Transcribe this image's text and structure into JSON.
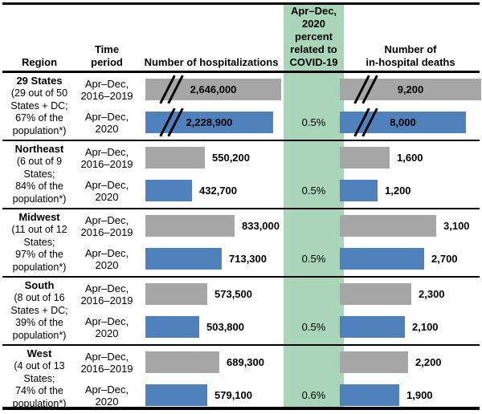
{
  "colors": {
    "bar_2016_2019": "#a6a6a6",
    "bar_2020": "#4f81bd",
    "covid_column": "#a9d6b8",
    "rule": "#000000"
  },
  "header": {
    "region": "Region",
    "time_period": "Time\nperiod",
    "hospitalizations": "Number of hospitalizations",
    "covid": "Apr–Dec,\n2020\npercent\nrelated to\nCOVID-19",
    "deaths": "Number of\nin-hospital deaths"
  },
  "sections": [
    {
      "region": "29 States",
      "note": "(29 out of 50\nStates + DC;\n67% of the\npopulation*)",
      "rows": [
        {
          "period": "Apr–Dec,\n2016–2019",
          "hosp_value": 2646000,
          "hosp_label": "2,646,000",
          "hosp_truncated": true,
          "deaths_value": 9200,
          "deaths_label": "9,200",
          "deaths_truncated": true
        },
        {
          "period": "Apr–Dec,\n2020",
          "covid_pct": "0.5%",
          "hosp_value": 2228900,
          "hosp_label": "2,228,900",
          "hosp_truncated": true,
          "deaths_value": 8000,
          "deaths_label": "8,000",
          "deaths_truncated": true
        }
      ]
    },
    {
      "region": "Northeast",
      "note": "(6 out of 9\nStates;\n84% of the\npopulation*)",
      "rows": [
        {
          "period": "Apr–Dec,\n2016–2019",
          "hosp_value": 550200,
          "hosp_label": "550,200",
          "deaths_value": 1600,
          "deaths_label": "1,600"
        },
        {
          "period": "Apr–Dec,\n2020",
          "covid_pct": "0.5%",
          "hosp_value": 432700,
          "hosp_label": "432,700",
          "deaths_value": 1200,
          "deaths_label": "1,200"
        }
      ]
    },
    {
      "region": "Midwest",
      "note": "(11 out of 12\nStates;\n97% of the\npopulation*)",
      "rows": [
        {
          "period": "Apr–Dec,\n2016–2019",
          "hosp_value": 833000,
          "hosp_label": "833,000",
          "deaths_value": 3100,
          "deaths_label": "3,100"
        },
        {
          "period": "Apr–Dec,\n2020",
          "covid_pct": "0.5%",
          "hosp_value": 713300,
          "hosp_label": "713,300",
          "deaths_value": 2700,
          "deaths_label": "2,700"
        }
      ]
    },
    {
      "region": "South",
      "note": "(8 out of 16\nStates + DC;\n39% of the\npopulation*)",
      "rows": [
        {
          "period": "Apr–Dec,\n2016–2019",
          "hosp_value": 573500,
          "hosp_label": "573,500",
          "deaths_value": 2300,
          "deaths_label": "2,300"
        },
        {
          "period": "Apr–Dec,\n2020",
          "covid_pct": "0.5%",
          "hosp_value": 503800,
          "hosp_label": "503,800",
          "deaths_value": 2100,
          "deaths_label": "2,100"
        }
      ]
    },
    {
      "region": "West",
      "note": "(4 out of 13\nStates;\n74% of the\npopulation*)",
      "rows": [
        {
          "period": "Apr–Dec,\n2016–2019",
          "hosp_value": 689300,
          "hosp_label": "689,300",
          "deaths_value": 2200,
          "deaths_label": "2,200"
        },
        {
          "period": "Apr–Dec,\n2020",
          "covid_pct": "0.6%",
          "hosp_value": 579100,
          "hosp_label": "579,100",
          "deaths_value": 1900,
          "deaths_label": "1,900"
        }
      ]
    }
  ],
  "chart_data": {
    "type": "bar",
    "orientation": "horizontal",
    "series_labels": [
      "Apr–Dec, 2016–2019",
      "Apr–Dec, 2020"
    ],
    "categories": [
      "29 States",
      "Northeast",
      "Midwest",
      "South",
      "West"
    ],
    "category_notes": [
      "29 out of 50 States + DC; 67% of the population*",
      "6 out of 9 States; 84% of the population*",
      "11 out of 12 States; 97% of the population*",
      "8 out of 16 States + DC; 39% of the population*",
      "4 out of 13 States; 74% of the population*"
    ],
    "hospitalizations": {
      "title": "Number of hospitalizations",
      "series": [
        {
          "name": "Apr–Dec, 2016–2019",
          "values": [
            2646000,
            550200,
            833000,
            573500,
            689300
          ]
        },
        {
          "name": "Apr–Dec, 2020",
          "values": [
            2228900,
            432700,
            713300,
            503800,
            579100
          ]
        }
      ]
    },
    "in_hospital_deaths": {
      "title": "Number of in-hospital deaths",
      "series": [
        {
          "name": "Apr–Dec, 2016–2019",
          "values": [
            9200,
            1600,
            3100,
            2300,
            2200
          ]
        },
        {
          "name": "Apr–Dec, 2020",
          "values": [
            8000,
            1200,
            2700,
            2100,
            1900
          ]
        }
      ]
    },
    "covid_percent_column": {
      "title": "Apr–Dec, 2020 percent related to COVID-19",
      "values": [
        "0.5%",
        "0.5%",
        "0.5%",
        "0.5%",
        "0.6%"
      ]
    },
    "layout_hints": {
      "bars_with_axis_break": "29 States row (both measures, both series)",
      "legend_position": "none",
      "grid": false
    }
  }
}
